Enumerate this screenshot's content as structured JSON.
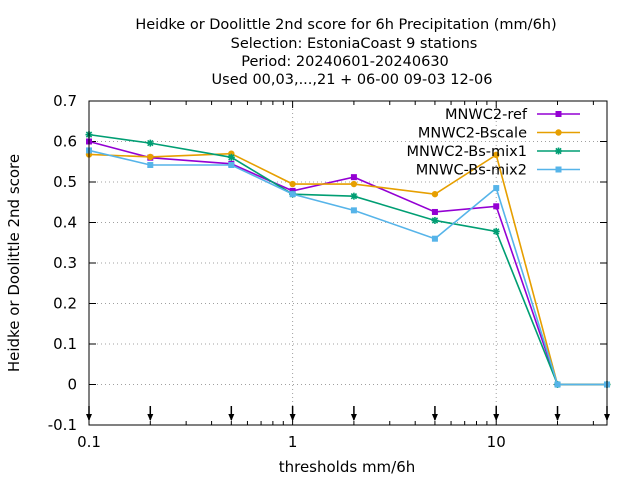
{
  "chart_data": {
    "type": "line",
    "title_lines": [
      "Heidke or Doolittle 2nd score  for 6h Precipitation (mm/6h)",
      "Selection: EstoniaCoast      9 stations",
      "Period: 20240601-20240630",
      "Used 00,03,...,21 + 06-00 09-03 12-06"
    ],
    "xlabel": "thresholds mm/6h",
    "ylabel": "Heidke or Doolittle 2nd score",
    "xscale": "log",
    "xlim": [
      0.1,
      35
    ],
    "ylim": [
      -0.1,
      0.7
    ],
    "x_ticks": [
      {
        "value": 0.1,
        "label": "0.1"
      },
      {
        "value": 1,
        "label": "1"
      },
      {
        "value": 10,
        "label": "10"
      }
    ],
    "y_ticks": [
      {
        "value": -0.1,
        "label": "-0.1"
      },
      {
        "value": 0,
        "label": "0"
      },
      {
        "value": 0.1,
        "label": "0.1"
      },
      {
        "value": 0.2,
        "label": "0.2"
      },
      {
        "value": 0.3,
        "label": "0.3"
      },
      {
        "value": 0.4,
        "label": "0.4"
      },
      {
        "value": 0.5,
        "label": "0.5"
      },
      {
        "value": 0.6,
        "label": "0.6"
      },
      {
        "value": 0.7,
        "label": "0.7"
      }
    ],
    "threshold_arrows": [
      0.1,
      0.2,
      0.5,
      1,
      2,
      5,
      10,
      20,
      35
    ],
    "grid": true,
    "legend_position": "top-right",
    "series": [
      {
        "name": "MNWC2-ref",
        "color": "#9400d3",
        "marker": "filled-square",
        "x": [
          0.1,
          0.2,
          0.5,
          1,
          2,
          5,
          10,
          20,
          35
        ],
        "y": [
          0.6,
          0.56,
          0.545,
          0.478,
          0.512,
          0.426,
          0.44,
          0.0,
          0.0
        ]
      },
      {
        "name": "MNWC2-Bscale",
        "color": "#e69f00",
        "marker": "filled-circle",
        "x": [
          0.1,
          0.2,
          0.5,
          1,
          2,
          5,
          10,
          20,
          35
        ],
        "y": [
          0.568,
          0.562,
          0.57,
          0.495,
          0.495,
          0.47,
          0.567,
          0.0,
          0.0
        ]
      },
      {
        "name": "MNWC2-Bs-mix1",
        "color": "#009e73",
        "marker": "star",
        "x": [
          0.1,
          0.2,
          0.5,
          1,
          2,
          5,
          10,
          20,
          35
        ],
        "y": [
          0.617,
          0.596,
          0.561,
          0.47,
          0.465,
          0.405,
          0.378,
          0.0,
          0.0
        ]
      },
      {
        "name": "MNWC-Bs-mix2",
        "color": "#56b4e9",
        "marker": "filled-square",
        "x": [
          0.1,
          0.2,
          0.5,
          1,
          2,
          5,
          10,
          20,
          35
        ],
        "y": [
          0.578,
          0.542,
          0.542,
          0.47,
          0.43,
          0.36,
          0.485,
          0.0,
          0.0
        ]
      }
    ]
  }
}
